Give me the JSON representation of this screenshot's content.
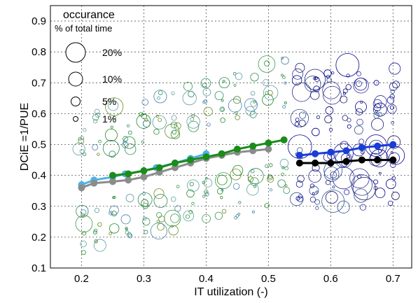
{
  "chart_data": {
    "type": "scatter",
    "xlabel": "IT utilization (-)",
    "ylabel": "DCiE =1/PUE",
    "xlim": [
      0.15,
      0.73
    ],
    "ylim": [
      0.1,
      0.95
    ],
    "x_ticks": [
      "0.2",
      "0.3",
      "0.4",
      "0.5",
      "0.6",
      "0.7"
    ],
    "y_ticks": [
      "0.1",
      "0.2",
      "0.3",
      "0.4",
      "0.5",
      "0.6",
      "0.7",
      "0.8",
      "0.9"
    ],
    "grid": true,
    "legend": {
      "placement": "top-left",
      "title": "occurance",
      "subtitle": "% of total time",
      "items": [
        {
          "label": "20%",
          "size_percent": 20
        },
        {
          "label": "10%",
          "size_percent": 10
        },
        {
          "label": "5%",
          "size_percent": 5
        },
        {
          "label": "1%",
          "size_percent": 1
        }
      ]
    },
    "series": [
      {
        "color": "#4fb3e8",
        "x": [
          0.2,
          0.22,
          0.25,
          0.27,
          0.3,
          0.32,
          0.35,
          0.375,
          0.4
        ],
        "y": [
          0.37,
          0.385,
          0.395,
          0.405,
          0.415,
          0.425,
          0.44,
          0.455,
          0.47
        ]
      },
      {
        "color": "#8c8c8c",
        "x": [
          0.2,
          0.22,
          0.25,
          0.275,
          0.3,
          0.325,
          0.35,
          0.375,
          0.4,
          0.425,
          0.45,
          0.475,
          0.5
        ],
        "y": [
          0.36,
          0.375,
          0.38,
          0.385,
          0.395,
          0.41,
          0.425,
          0.44,
          0.455,
          0.465,
          0.475,
          0.48,
          0.485
        ]
      },
      {
        "color": "#1a8c1a",
        "x": [
          0.25,
          0.275,
          0.3,
          0.325,
          0.35,
          0.375,
          0.4,
          0.425,
          0.45,
          0.475,
          0.5,
          0.525
        ],
        "y": [
          0.4,
          0.405,
          0.415,
          0.425,
          0.44,
          0.45,
          0.46,
          0.47,
          0.485,
          0.495,
          0.505,
          0.515
        ]
      },
      {
        "color": "#1a3cd9",
        "x": [
          0.55,
          0.575,
          0.6,
          0.625,
          0.65,
          0.675,
          0.7
        ],
        "y": [
          0.465,
          0.47,
          0.475,
          0.48,
          0.49,
          0.495,
          0.5
        ]
      },
      {
        "color": "#000000",
        "x": [
          0.55,
          0.575,
          0.6,
          0.625,
          0.65,
          0.675,
          0.7
        ],
        "y": [
          0.44,
          0.44,
          0.44,
          0.445,
          0.45,
          0.45,
          0.45
        ]
      }
    ],
    "bubble_clusters": [
      {
        "color": "#2e8b57",
        "x_range": [
          0.2,
          0.525
        ],
        "y_center_start": 0.52,
        "y_center_end": 0.7
      },
      {
        "color": "#2e8b57",
        "x_range": [
          0.2,
          0.525
        ],
        "y_center_start": 0.23,
        "y_center_end": 0.37
      },
      {
        "color": "#00008b",
        "x_range": [
          0.55,
          0.7
        ],
        "y_center": 0.65
      },
      {
        "color": "#00008b",
        "x_range": [
          0.55,
          0.7
        ],
        "y_center": 0.4
      }
    ]
  }
}
